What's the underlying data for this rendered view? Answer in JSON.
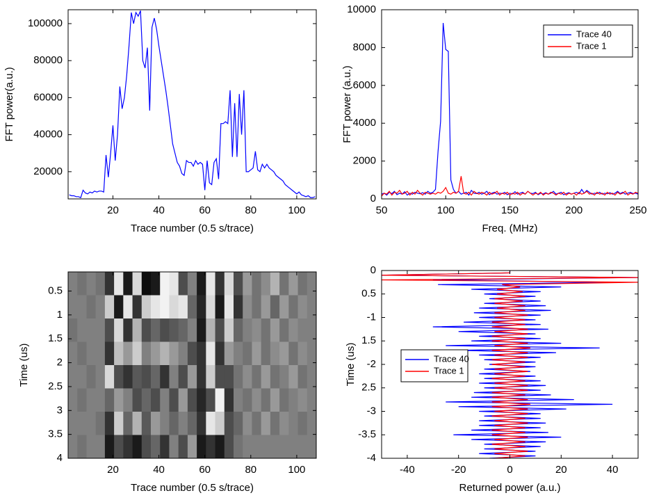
{
  "chart_data": [
    {
      "type": "line",
      "xlabel": "Trace number (0.5 s/trace)",
      "ylabel": "FFT power(a.u.)",
      "x": [
        1,
        2,
        3,
        4,
        5,
        6,
        7,
        8,
        9,
        10,
        11,
        12,
        13,
        14,
        15,
        16,
        17,
        18,
        19,
        20,
        21,
        22,
        23,
        24,
        25,
        26,
        27,
        28,
        29,
        30,
        31,
        32,
        33,
        34,
        35,
        36,
        37,
        38,
        39,
        40,
        41,
        42,
        43,
        44,
        45,
        46,
        47,
        48,
        49,
        50,
        51,
        52,
        53,
        54,
        55,
        56,
        57,
        58,
        59,
        60,
        61,
        62,
        63,
        64,
        65,
        66,
        67,
        68,
        69,
        70,
        71,
        72,
        73,
        74,
        75,
        76,
        77,
        78,
        79,
        80,
        81,
        82,
        83,
        84,
        85,
        86,
        87,
        88,
        89,
        90,
        91,
        92,
        93,
        94,
        95,
        96,
        97,
        98,
        99,
        100,
        101,
        102,
        103,
        104,
        105,
        106,
        107,
        108
      ],
      "series": [
        {
          "color": "#0000ff",
          "values": [
            7500,
            7000,
            7000,
            6500,
            6500,
            6000,
            10000,
            8500,
            8000,
            9000,
            8500,
            9500,
            9000,
            9500,
            9500,
            9000,
            29000,
            17000,
            30000,
            45000,
            26000,
            40000,
            66000,
            54000,
            60000,
            72000,
            88000,
            106000,
            100000,
            106000,
            104000,
            107000,
            80000,
            76000,
            87000,
            53000,
            98000,
            103000,
            97000,
            88000,
            80000,
            72000,
            64000,
            55000,
            45000,
            35000,
            30000,
            25000,
            23000,
            19000,
            18000,
            26000,
            25000,
            25000,
            23000,
            26000,
            24000,
            25000,
            24000,
            10000,
            26000,
            14000,
            13000,
            25000,
            27000,
            16000,
            46000,
            46000,
            47000,
            46000,
            64000,
            28000,
            57000,
            28000,
            62000,
            40000,
            64000,
            20000,
            20000,
            21000,
            22000,
            31000,
            21000,
            20000,
            24000,
            22000,
            24000,
            22000,
            21000,
            20000,
            18000,
            17000,
            16000,
            15000,
            13000,
            12000,
            11000,
            10000,
            9000,
            8000,
            9000,
            7500,
            7000,
            6500,
            7000,
            6000,
            6000,
            6500
          ]
        }
      ],
      "xlim": [
        0.5,
        108.5
      ],
      "xticks": [
        20,
        40,
        60,
        80,
        100
      ],
      "ylim": [
        5300,
        107500
      ],
      "yticks": [
        20000,
        40000,
        60000,
        80000,
        100000
      ]
    },
    {
      "type": "line",
      "xlabel": "Freq. (MHz)",
      "ylabel": "FFT power (a.u.)",
      "legend": "upper right",
      "x": [
        50,
        52,
        54,
        56,
        58,
        60,
        62,
        64,
        66,
        68,
        70,
        72,
        74,
        76,
        78,
        80,
        82,
        84,
        86,
        88,
        90,
        92,
        94,
        96,
        98,
        100,
        102,
        104,
        106,
        108,
        110,
        112,
        114,
        116,
        118,
        120,
        122,
        124,
        126,
        128,
        130,
        132,
        134,
        136,
        138,
        140,
        142,
        144,
        146,
        148,
        150,
        152,
        154,
        156,
        158,
        160,
        162,
        164,
        166,
        168,
        170,
        172,
        174,
        176,
        178,
        180,
        182,
        184,
        186,
        188,
        190,
        192,
        194,
        196,
        198,
        200,
        202,
        204,
        206,
        208,
        210,
        212,
        214,
        216,
        218,
        220,
        222,
        224,
        226,
        228,
        230,
        232,
        234,
        236,
        238,
        240,
        242,
        244,
        246,
        248,
        250
      ],
      "series": [
        {
          "name": "Trace 40",
          "color": "#0000ff",
          "values": [
            250,
            300,
            200,
            350,
            280,
            400,
            220,
            300,
            250,
            380,
            200,
            300,
            250,
            350,
            300,
            270,
            330,
            250,
            400,
            300,
            350,
            500,
            2500,
            4100,
            9300,
            7900,
            7800,
            1000,
            500,
            300,
            400,
            250,
            300,
            350,
            200,
            450,
            300,
            280,
            350,
            250,
            300,
            400,
            220,
            300,
            350,
            250,
            300,
            280,
            350,
            220,
            300,
            260,
            380,
            250,
            300,
            350,
            250,
            400,
            300,
            280,
            350,
            220,
            300,
            260,
            330,
            250,
            300,
            400,
            250,
            300,
            350,
            220,
            280,
            330,
            250,
            300,
            350,
            270,
            500,
            300,
            450,
            350,
            250,
            300,
            280,
            350,
            250,
            300,
            270,
            330,
            250,
            300,
            400,
            280,
            350,
            250,
            300,
            350,
            280,
            300,
            250
          ]
        },
        {
          "name": "Trace 1",
          "color": "#ff0000",
          "values": [
            150,
            300,
            250,
            400,
            200,
            350,
            300,
            450,
            250,
            300,
            400,
            200,
            350,
            250,
            450,
            300,
            200,
            350,
            300,
            250,
            300,
            250,
            350,
            300,
            400,
            600,
            300,
            250,
            350,
            300,
            400,
            1200,
            300,
            250,
            350,
            200,
            400,
            300,
            250,
            350,
            300,
            200,
            350,
            250,
            300,
            400,
            200,
            300,
            250,
            350,
            200,
            300,
            250,
            350,
            200,
            300,
            250,
            400,
            300,
            200,
            300,
            250,
            350,
            200,
            300,
            250,
            350,
            300,
            200,
            300,
            250,
            350,
            200,
            300,
            250,
            300,
            200,
            350,
            250,
            300,
            400,
            250,
            300,
            200,
            350,
            250,
            300,
            200,
            350,
            250,
            300,
            200,
            350,
            250,
            300,
            400,
            200,
            300,
            250,
            350,
            300
          ]
        }
      ],
      "xlim": [
        50,
        250
      ],
      "xticks": [
        50,
        100,
        150,
        200,
        250
      ],
      "ylim": [
        0,
        10000
      ],
      "yticks": [
        0,
        2000,
        4000,
        6000,
        8000,
        10000
      ]
    },
    {
      "type": "heatmap",
      "xlabel": "Trace number (0.5 s/trace)",
      "ylabel": "Time (us)",
      "z": [
        [
          0.5,
          0.45,
          0.5,
          0.45,
          0.2,
          0.9,
          0.1,
          0.85,
          0.05,
          0.1,
          0.95,
          0.9,
          0.3,
          0.5,
          0.1,
          0.9,
          0.2,
          0.85,
          0.3,
          0.6,
          0.45,
          0.55,
          0.7,
          0.45,
          0.6,
          0.45,
          0.5
        ],
        [
          0.5,
          0.5,
          0.45,
          0.5,
          0.8,
          0.1,
          0.9,
          0.2,
          0.8,
          0.9,
          0.95,
          0.85,
          0.9,
          0.4,
          0.15,
          0.85,
          0.1,
          0.9,
          0.2,
          0.55,
          0.45,
          0.6,
          0.4,
          0.6,
          0.45,
          0.55,
          0.5
        ],
        [
          0.45,
          0.5,
          0.5,
          0.5,
          0.3,
          0.85,
          0.2,
          0.7,
          0.3,
          0.4,
          0.3,
          0.35,
          0.4,
          0.5,
          0.1,
          0.7,
          0.3,
          0.8,
          0.4,
          0.5,
          0.55,
          0.45,
          0.6,
          0.45,
          0.55,
          0.5,
          0.5
        ],
        [
          0.5,
          0.45,
          0.5,
          0.5,
          0.2,
          0.75,
          0.6,
          0.8,
          0.5,
          0.6,
          0.7,
          0.6,
          0.5,
          0.3,
          0.2,
          0.9,
          0.2,
          0.6,
          0.5,
          0.45,
          0.6,
          0.45,
          0.55,
          0.6,
          0.45,
          0.55,
          0.5
        ],
        [
          0.5,
          0.5,
          0.45,
          0.5,
          0.85,
          0.3,
          0.2,
          0.35,
          0.3,
          0.4,
          0.2,
          0.5,
          0.3,
          0.6,
          0.2,
          0.8,
          0.3,
          0.3,
          0.45,
          0.55,
          0.45,
          0.6,
          0.45,
          0.5,
          0.6,
          0.45,
          0.5
        ],
        [
          0.5,
          0.45,
          0.5,
          0.5,
          0.4,
          0.6,
          0.5,
          0.3,
          0.4,
          0.3,
          0.5,
          0.3,
          0.6,
          0.3,
          0.15,
          0.3,
          0.95,
          0.2,
          0.5,
          0.45,
          0.55,
          0.45,
          0.6,
          0.45,
          0.5,
          0.55,
          0.5
        ],
        [
          0.5,
          0.5,
          0.5,
          0.45,
          0.2,
          0.8,
          0.4,
          0.7,
          0.35,
          0.6,
          0.5,
          0.4,
          0.5,
          0.4,
          0.2,
          0.9,
          0.8,
          0.3,
          0.4,
          0.55,
          0.45,
          0.6,
          0.45,
          0.55,
          0.5,
          0.45,
          0.5
        ],
        [
          0.5,
          0.45,
          0.5,
          0.5,
          0.1,
          0.3,
          0.2,
          0.1,
          0.3,
          0.4,
          0.2,
          0.5,
          0.3,
          0.6,
          0.1,
          0.2,
          0.1,
          0.3,
          0.45,
          0.5,
          0.5,
          0.5,
          0.5,
          0.5,
          0.5,
          0.5,
          0.5
        ]
      ],
      "xlim": [
        0.5,
        108.5
      ],
      "xticks": [
        20,
        40,
        60,
        80,
        100
      ],
      "ylim": [
        4,
        0.1
      ],
      "yticks": [
        0.5,
        1,
        1.5,
        2,
        2.5,
        3,
        3.5,
        4
      ]
    },
    {
      "type": "line",
      "orientation": "horizontal",
      "xlabel": "Returned power (a.u.)",
      "ylabel": "Time (us)",
      "legend": "center left",
      "y": [
        0,
        -0.05,
        -0.1,
        -0.15,
        -0.2,
        -0.25,
        -0.3,
        -0.35,
        -0.4,
        -0.45,
        -0.5,
        -0.55,
        -0.6,
        -0.65,
        -0.7,
        -0.75,
        -0.8,
        -0.85,
        -0.9,
        -0.95,
        -1,
        -1.05,
        -1.1,
        -1.15,
        -1.2,
        -1.25,
        -1.3,
        -1.35,
        -1.4,
        -1.45,
        -1.5,
        -1.55,
        -1.6,
        -1.65,
        -1.7,
        -1.75,
        -1.8,
        -1.85,
        -1.9,
        -1.95,
        -2,
        -2.05,
        -2.1,
        -2.15,
        -2.2,
        -2.25,
        -2.3,
        -2.35,
        -2.4,
        -2.45,
        -2.5,
        -2.55,
        -2.6,
        -2.65,
        -2.7,
        -2.75,
        -2.8,
        -2.85,
        -2.9,
        -2.95,
        -3,
        -3.05,
        -3.1,
        -3.15,
        -3.2,
        -3.25,
        -3.3,
        -3.35,
        -3.4,
        -3.45,
        -3.5,
        -3.55,
        -3.6,
        -3.65,
        -3.7,
        -3.75,
        -3.8,
        -3.85,
        -3.9,
        -3.95,
        -4
      ],
      "series": [
        {
          "name": "Trace 40",
          "color": "#0000ff",
          "values": [
            0,
            0,
            -50,
            50,
            -30,
            40,
            -28,
            20,
            -15,
            12,
            -10,
            10,
            -8,
            12,
            -10,
            14,
            -12,
            16,
            -14,
            12,
            -12,
            10,
            -18,
            12,
            -30,
            15,
            -20,
            10,
            -12,
            12,
            -15,
            20,
            -25,
            35,
            -20,
            18,
            -12,
            12,
            -10,
            10,
            -8,
            10,
            -10,
            8,
            -12,
            10,
            -10,
            12,
            -12,
            14,
            -10,
            12,
            -14,
            16,
            -15,
            25,
            -25,
            40,
            -20,
            22,
            -12,
            12,
            -10,
            12,
            -12,
            14,
            -12,
            12,
            -15,
            15,
            -22,
            20,
            -15,
            14,
            -10,
            12,
            -10,
            10,
            -12,
            10,
            -8
          ]
        },
        {
          "name": "Trace 1",
          "color": "#ff0000",
          "values": [
            0,
            0,
            -50,
            50,
            -50,
            50,
            -3,
            4,
            -5,
            5,
            -5,
            6,
            -6,
            5,
            -6,
            6,
            -5,
            6,
            -6,
            7,
            -6,
            6,
            -7,
            6,
            -7,
            7,
            -6,
            7,
            -7,
            6,
            -7,
            7,
            -6,
            8,
            -7,
            7,
            -6,
            7,
            -7,
            6,
            -7,
            6,
            -6,
            7,
            -6,
            6,
            -7,
            6,
            -6,
            7,
            -6,
            7,
            -7,
            6,
            -7,
            7,
            -7,
            8,
            -7,
            7,
            -6,
            7,
            -7,
            6,
            -6,
            7,
            -6,
            6,
            -7,
            6,
            -7,
            7,
            -6,
            6,
            -7,
            6,
            -6,
            7,
            -6,
            6,
            -6
          ]
        }
      ],
      "xlim": [
        -50,
        50
      ],
      "xticks": [
        -40,
        -20,
        0,
        20,
        40
      ],
      "ylim": [
        -4,
        0
      ],
      "yticks": [
        0,
        {
          "value": -0.5,
          "label": "0.5"
        },
        -1,
        {
          "value": -1.5,
          "label": "1.5"
        },
        -2,
        {
          "value": -2.5,
          "label": "2.5"
        },
        -3,
        -3.5,
        -4
      ]
    }
  ]
}
